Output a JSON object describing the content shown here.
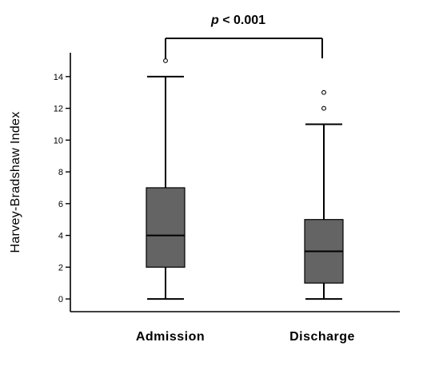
{
  "chart_data": {
    "type": "boxplot",
    "ylabel": "Harvey-Bradshaw Index",
    "xlabel": "",
    "ylim": [
      -0.8,
      15.5
    ],
    "yticks": [
      0,
      2,
      4,
      6,
      8,
      10,
      12,
      14
    ],
    "grid": false,
    "categories": [
      "Admission",
      "Discharge"
    ],
    "boxes": [
      {
        "category": "Admission",
        "min": 0,
        "q1": 2,
        "median": 4,
        "q3": 7,
        "max": 14,
        "outliers": [
          15
        ]
      },
      {
        "category": "Discharge",
        "min": 0,
        "q1": 1,
        "median": 3,
        "q3": 5,
        "max": 11,
        "outliers": [
          12,
          13
        ]
      }
    ],
    "box_color": "#646464",
    "annotation": {
      "italic": "p",
      "rest": " < 0.001"
    }
  }
}
